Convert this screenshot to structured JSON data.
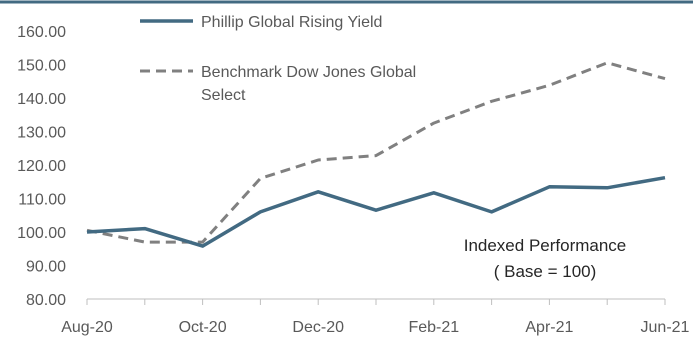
{
  "chart_data": {
    "type": "line",
    "title": "",
    "xlabel": "",
    "ylabel": "",
    "x": [
      "Aug-20",
      "Sep-20",
      "Oct-20",
      "Nov-20",
      "Dec-20",
      "Jan-21",
      "Feb-21",
      "Mar-21",
      "Apr-21",
      "May-21",
      "Jun-21"
    ],
    "x_tick_labels": [
      "Aug-20",
      "Oct-20",
      "Dec-20",
      "Feb-21",
      "Apr-21",
      "Jun-21"
    ],
    "ylim": [
      80,
      160
    ],
    "y_tick_labels": [
      "160.00",
      "150.00",
      "140.00",
      "130.00",
      "120.00",
      "110.00",
      "100.00",
      "90.00",
      "80.00"
    ],
    "series": [
      {
        "name": "Phillip Global Rising Yield",
        "style": "solid",
        "color": "#426a82",
        "values": [
          100.0,
          101.0,
          95.8,
          106.0,
          112.0,
          106.5,
          111.7,
          106.0,
          113.5,
          113.2,
          116.2
        ]
      },
      {
        "name": "Benchmark Dow Jones Global Select",
        "style": "dashed",
        "color": "#808080",
        "values": [
          100.5,
          97.0,
          97.0,
          116.0,
          121.5,
          122.8,
          132.5,
          139.0,
          143.8,
          150.5,
          145.8
        ]
      }
    ],
    "legend_lines": [
      [
        "Phillip Global Rising Yield"
      ],
      [
        "Benchmark Dow Jones Global",
        "Select"
      ]
    ],
    "annotation_lines": [
      "Indexed Performance",
      "( Base = 100)"
    ],
    "grid": false,
    "legend_position": "top-left"
  },
  "colors": {
    "axis": "#bfbfbf",
    "top_border": "#426a82",
    "text": "#595959"
  }
}
